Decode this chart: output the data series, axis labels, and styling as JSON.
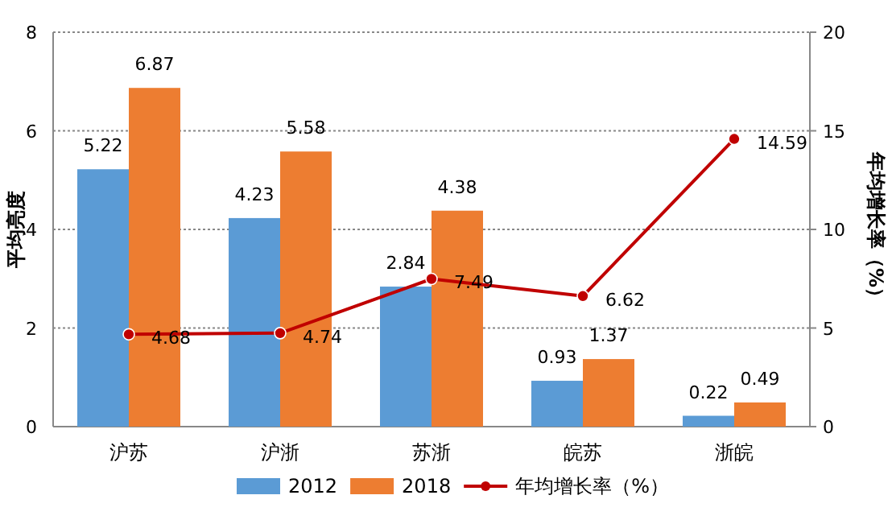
{
  "chart_data": {
    "type": "bar",
    "ylabel": "平均亮度",
    "y2label": "年均增长率（%）",
    "categories": [
      "沪苏",
      "沪浙",
      "苏浙",
      "皖苏",
      "浙皖"
    ],
    "series": [
      {
        "name": "2012",
        "color": "#5b9bd5",
        "values": [
          5.22,
          4.23,
          2.84,
          0.93,
          0.22
        ]
      },
      {
        "name": "2018",
        "color": "#ed7d31",
        "values": [
          6.87,
          5.58,
          4.38,
          1.37,
          0.49
        ]
      },
      {
        "name": "年均增长率（%）",
        "type": "line",
        "axis": "y2",
        "color": "#c00000",
        "marker": "circle",
        "values": [
          4.68,
          4.74,
          7.49,
          6.62,
          14.59
        ]
      }
    ],
    "ylim": [
      0,
      8
    ],
    "yticks": [
      0,
      2,
      4,
      6,
      8
    ],
    "y2lim": [
      0,
      20
    ],
    "y2ticks": [
      0,
      5,
      10,
      15,
      20
    ],
    "grid": "y",
    "legend": "bottom",
    "data_labels": true
  }
}
